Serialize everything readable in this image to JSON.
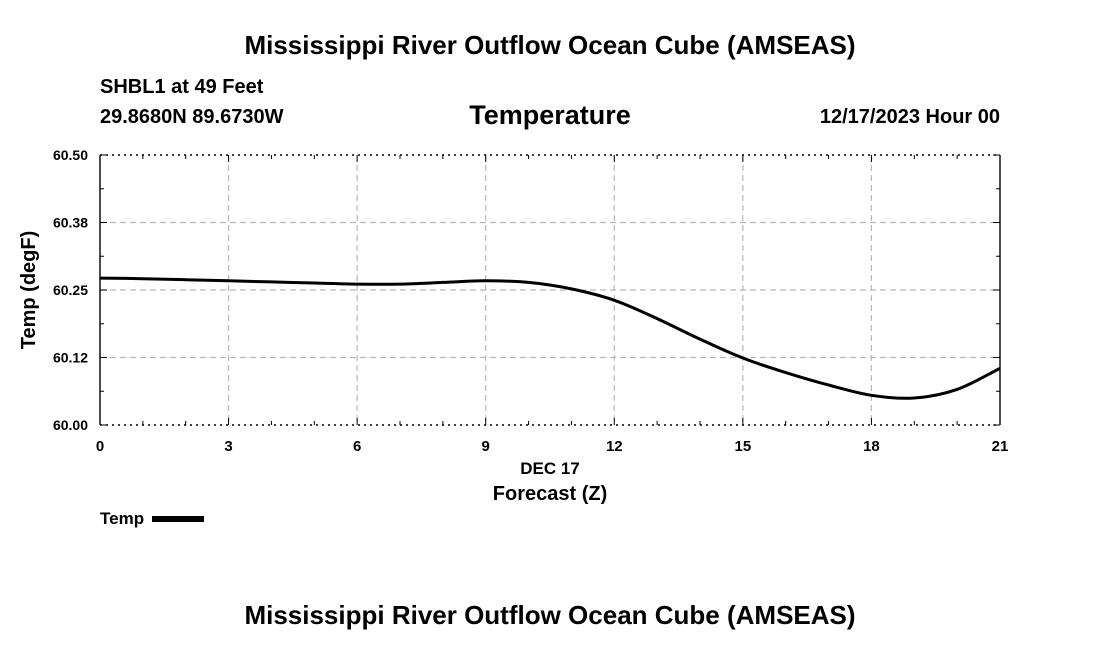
{
  "header": {
    "title": "Mississippi River Outflow Ocean Cube (AMSEAS)",
    "station": "SHBL1 at 49 Feet",
    "coords": "29.8680N  89.6730W",
    "subtitle": "Temperature",
    "datetime": "12/17/2023 Hour 00"
  },
  "footer": {
    "title": "Mississippi River Outflow Ocean Cube (AMSEAS)"
  },
  "legend": {
    "label": "Temp",
    "color": "#000000"
  },
  "chart_data": {
    "type": "line",
    "title": "Temperature",
    "xlabel": "Forecast (Z)",
    "xsublabel": "DEC 17",
    "ylabel": "Temp (degF)",
    "xlim": [
      0,
      21
    ],
    "ylim": [
      60.0,
      60.5
    ],
    "xticks": [
      0,
      3,
      6,
      9,
      12,
      15,
      18,
      21
    ],
    "xtick_labels": [
      "0",
      "3",
      "6",
      "9",
      "12",
      "15",
      "18",
      "21"
    ],
    "yticks": [
      60.0,
      60.125,
      60.25,
      60.375,
      60.5
    ],
    "ytick_labels": [
      "60.00",
      "60.12",
      "60.25",
      "60.38",
      "60.50"
    ],
    "grid": true,
    "series": [
      {
        "name": "Temp",
        "color": "#000000",
        "x": [
          0,
          1,
          2,
          3,
          4,
          5,
          6,
          7,
          8,
          9,
          10,
          11,
          12,
          13,
          14,
          15,
          16,
          17,
          18,
          19,
          20,
          21
        ],
        "values": [
          60.272,
          60.271,
          60.269,
          60.267,
          60.265,
          60.263,
          60.261,
          60.261,
          60.264,
          60.267,
          60.264,
          60.252,
          60.231,
          60.197,
          60.159,
          60.124,
          60.097,
          60.074,
          60.055,
          60.05,
          60.066,
          60.105
        ]
      }
    ]
  }
}
